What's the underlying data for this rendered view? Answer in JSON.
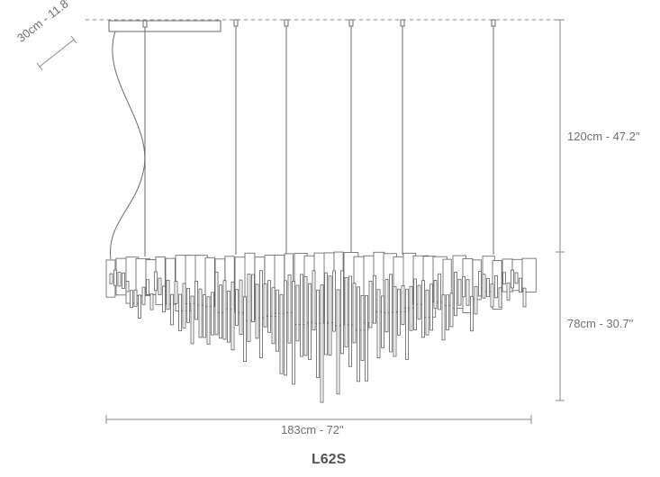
{
  "diagram": {
    "canopy_dimension": "30cm - 11.8\"",
    "suspension_height": "120cm - 47.2\"",
    "body_height": "78cm - 30.7\"",
    "total_width": "183cm - 72\"",
    "model_code": "L62S"
  },
  "colors": {
    "line": "#6a6a6a",
    "dimension": "#8a8a8a",
    "text": "#6f6f6f",
    "model_text": "#555555"
  }
}
